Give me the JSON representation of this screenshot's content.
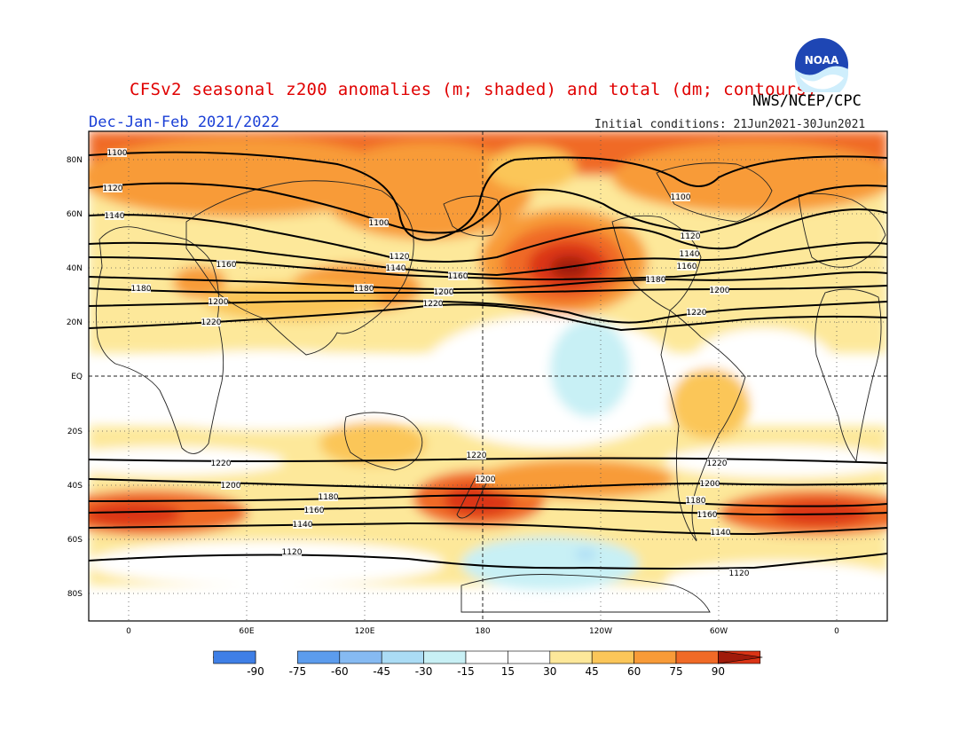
{
  "title": "CFSv2 seasonal z200 anomalies (m; shaded) and total (dm; contours)",
  "agency": "NWS/NCEP/CPC",
  "season": "Dec-Jan-Feb 2021/2022",
  "initial_conditions": "Initial conditions: 21Jun2021-30Jun2021",
  "logo_text": "NOAA",
  "colors": {
    "neg90": "#2a5fd8",
    "neg75": "#3f7fe6",
    "neg60": "#5c9ced",
    "neg45": "#86baf2",
    "neg30": "#abdcf5",
    "neg15": "#c8f0f5",
    "neutral": "#ffffff",
    "pos15": "#fde89a",
    "pos30": "#fbc659",
    "pos45": "#f89b38",
    "pos60": "#f06a26",
    "pos75": "#db3416",
    "pos90": "#a01a0a"
  },
  "axes": {
    "lat_labels": [
      "80N",
      "60N",
      "40N",
      "20N",
      "EQ",
      "20S",
      "40S",
      "60S",
      "80S"
    ],
    "lon_labels": [
      "0",
      "60E",
      "120E",
      "180",
      "120W",
      "60W",
      "0"
    ]
  },
  "colorbar": {
    "labels": [
      "-90",
      "-75",
      "-60",
      "-45",
      "-30",
      "-15",
      "15",
      "30",
      "45",
      "60",
      "75",
      "90"
    ]
  },
  "contour_labels": [
    {
      "v": "1100"
    },
    {
      "v": "1120"
    },
    {
      "v": "1140"
    },
    {
      "v": "1100"
    },
    {
      "v": "1120"
    },
    {
      "v": "1140"
    },
    {
      "v": "1160"
    },
    {
      "v": "1180"
    },
    {
      "v": "1200"
    },
    {
      "v": "1220"
    },
    {
      "v": "1100"
    },
    {
      "v": "1120"
    },
    {
      "v": "1140"
    },
    {
      "v": "1160"
    },
    {
      "v": "1180"
    },
    {
      "v": "1200"
    },
    {
      "v": "1220"
    },
    {
      "v": "1160"
    },
    {
      "v": "1180"
    },
    {
      "v": "1200"
    },
    {
      "v": "1220"
    },
    {
      "v": "1220"
    },
    {
      "v": "1200"
    },
    {
      "v": "1180"
    },
    {
      "v": "1160"
    },
    {
      "v": "1140"
    },
    {
      "v": "1120"
    },
    {
      "v": "1220"
    },
    {
      "v": "1200"
    },
    {
      "v": "1220"
    },
    {
      "v": "1200"
    },
    {
      "v": "1180"
    },
    {
      "v": "1160"
    },
    {
      "v": "1140"
    },
    {
      "v": "1120"
    }
  ]
}
